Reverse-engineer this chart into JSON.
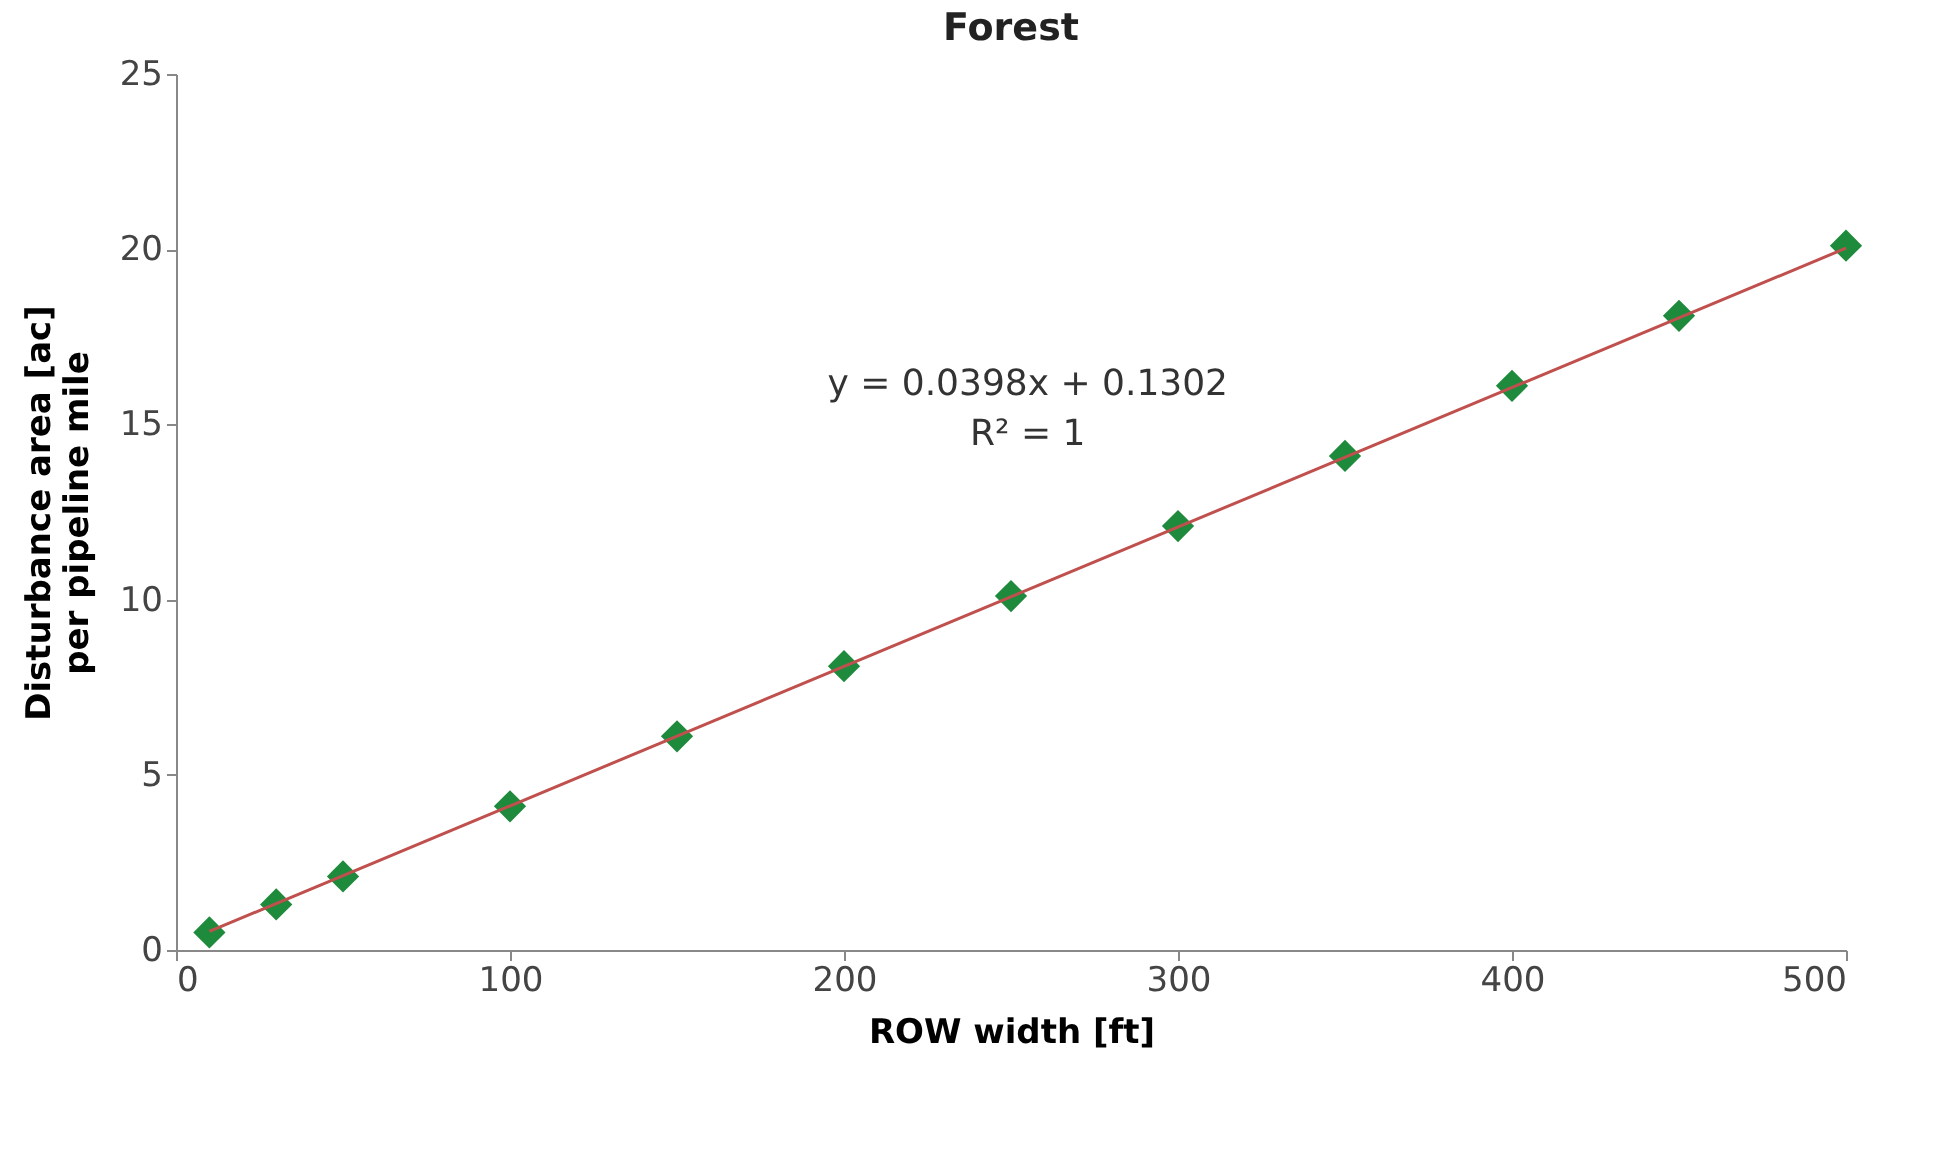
{
  "chart_data": {
    "type": "scatter",
    "title": "Forest",
    "xlabel": "ROW width [ft]",
    "ylabel": "Disturbance area [ac] per pipeline mile",
    "x": [
      10,
      30,
      50,
      100,
      150,
      200,
      250,
      300,
      350,
      400,
      450,
      500
    ],
    "series": [
      {
        "color": "#1e8a3c",
        "marker": "diamond",
        "values": [
          0.5,
          1.3,
          2.1,
          4.1,
          6.1,
          8.1,
          10.1,
          12.1,
          14.1,
          16.1,
          18.1,
          20.1
        ]
      },
      {
        "type": "line",
        "color": "#c0504d",
        "line_style": "solid",
        "x": [
          10,
          500
        ],
        "values": [
          0.53,
          20.03
        ]
      }
    ],
    "annotations": [
      "y = 0.0398x + 0.1302",
      "R² = 1"
    ],
    "xlim": [
      0,
      500
    ],
    "xticks": [
      0,
      100,
      200,
      300,
      400,
      500
    ],
    "ylim": [
      0,
      25
    ],
    "yticks": [
      0,
      5,
      10,
      15,
      20,
      25
    ],
    "grid": false
  }
}
